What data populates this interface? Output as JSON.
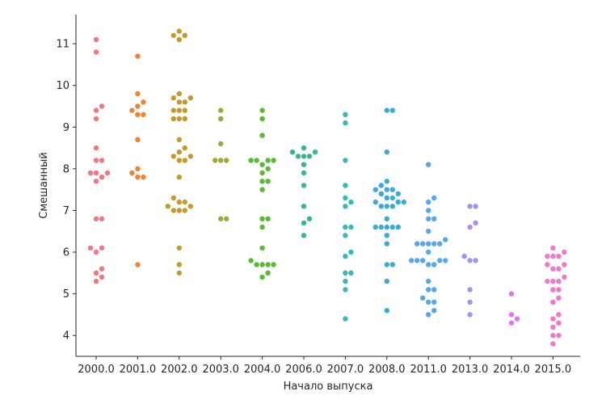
{
  "chart_data": {
    "type": "scatter",
    "subtype": "swarm",
    "title": "",
    "xlabel": "Начало выпуска",
    "ylabel": "Смешанный",
    "categories": [
      "2000.0",
      "2001.0",
      "2002.0",
      "2003.0",
      "2004.0",
      "2006.0",
      "2007.0",
      "2008.0",
      "2011.0",
      "2013.0",
      "2014.0",
      "2015.0"
    ],
    "ylim": [
      3.5,
      11.7
    ],
    "yticks": [
      4,
      5,
      6,
      7,
      8,
      9,
      10,
      11
    ],
    "grid": false,
    "legend": "none",
    "colors": [
      "#f0767f",
      "#f0842f",
      "#c29a2e",
      "#a2a73a",
      "#5cb935",
      "#36b597",
      "#38b9b9",
      "#39acd1",
      "#55a6ec",
      "#a492ee",
      "#e476e8",
      "#f078ca"
    ],
    "values": [
      [
        11.1,
        10.8,
        9.5,
        9.4,
        9.2,
        8.5,
        8.2,
        8.2,
        7.9,
        7.9,
        7.9,
        7.8,
        7.7,
        6.8,
        6.8,
        6.1,
        6.1,
        6.0,
        5.6,
        5.5,
        5.4,
        5.3
      ],
      [
        10.7,
        9.8,
        9.6,
        9.5,
        9.4,
        9.3,
        9.3,
        8.7,
        8.0,
        7.9,
        7.8,
        7.8,
        5.7
      ],
      [
        11.3,
        11.2,
        11.2,
        11.1,
        9.8,
        9.7,
        9.7,
        9.6,
        9.6,
        9.4,
        9.4,
        9.4,
        9.2,
        9.2,
        9.2,
        8.7,
        8.5,
        8.4,
        8.3,
        8.3,
        8.2,
        8.2,
        7.8,
        7.3,
        7.2,
        7.2,
        7.1,
        7.1,
        7.0,
        7.0,
        7.0,
        6.1,
        5.7,
        5.5
      ],
      [
        9.4,
        9.2,
        8.6,
        8.2,
        8.2,
        8.2,
        6.8,
        6.8
      ],
      [
        9.4,
        9.2,
        8.8,
        8.2,
        8.2,
        8.2,
        8.2,
        8.1,
        8.0,
        7.9,
        7.7,
        7.7,
        7.5,
        6.8,
        6.8,
        6.6,
        6.1,
        5.8,
        5.7,
        5.7,
        5.7,
        5.7,
        5.5,
        5.4
      ],
      [
        8.5,
        8.4,
        8.4,
        8.3,
        8.3,
        8.3,
        8.1,
        7.9,
        7.6,
        7.1,
        6.8,
        6.7,
        6.4
      ],
      [
        9.3,
        9.1,
        8.2,
        7.6,
        7.3,
        7.2,
        7.1,
        6.6,
        6.6,
        6.4,
        6.0,
        5.9,
        5.5,
        5.5,
        5.3,
        5.1,
        4.4
      ],
      [
        9.4,
        9.4,
        8.4,
        7.7,
        7.6,
        7.5,
        7.5,
        7.5,
        7.4,
        7.4,
        7.3,
        7.3,
        7.2,
        7.2,
        7.2,
        7.1,
        7.1,
        7.1,
        6.8,
        6.6,
        6.6,
        6.6,
        6.6,
        6.6,
        6.4,
        6.2,
        5.7,
        5.7,
        5.3,
        4.6
      ],
      [
        8.1,
        7.3,
        7.2,
        7.0,
        6.8,
        6.8,
        6.5,
        6.3,
        6.2,
        6.2,
        6.2,
        6.2,
        6.2,
        6.0,
        5.8,
        5.8,
        5.8,
        5.8,
        5.8,
        5.7,
        5.7,
        5.3,
        5.1,
        5.1,
        4.9,
        4.8,
        4.8,
        4.6,
        4.5
      ],
      [
        7.1,
        7.1,
        6.7,
        6.6,
        5.9,
        5.8,
        5.8,
        5.1,
        4.8,
        4.5
      ],
      [
        5.0,
        4.5,
        4.4,
        4.3
      ],
      [
        6.1,
        6.0,
        5.9,
        5.9,
        5.9,
        5.7,
        5.7,
        5.6,
        5.6,
        5.4,
        5.3,
        5.3,
        5.3,
        5.1,
        5.1,
        4.9,
        4.8,
        4.5,
        4.4,
        4.3,
        4.2,
        4.0,
        4.0,
        3.8
      ]
    ]
  }
}
